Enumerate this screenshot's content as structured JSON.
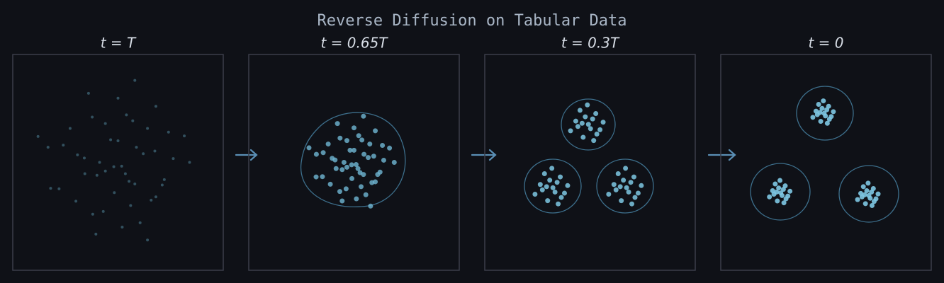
{
  "title": "Reverse Diffusion on Tabular Data",
  "chart_data": [
    {
      "type": "scatter",
      "title": "t = T",
      "color": "#3f6677",
      "alpha": 0.75,
      "xlim": [
        -4,
        4
      ],
      "ylim": [
        -4,
        4
      ],
      "x": [
        0.42,
        -1.54,
        1.12,
        -0.56,
        2.1,
        -0.28,
        0.14,
        -2.24,
        1.26,
        -0.98,
        0.7,
        -1.26,
        1.68,
        0,
        -0.7,
        0.84,
        -1.82,
        2.52,
        -0.14,
        0.56,
        -0.84,
        1.4,
        -2.66,
        0.28,
        -0.8,
        0.32,
        1.44,
        -2.08,
        0.16,
        0.96,
        -0.16,
        -1.12,
        -1.6,
        1.92,
        0.64,
        -0.48,
        -0.96,
        2.72,
        0,
        -2.56,
        1.44,
        1.12,
        -1.28,
        1.76,
        -3.04,
        0.48,
        0.64,
        -0.48
      ],
      "y": [
        -0.7,
        0.28,
        1.26,
        -1.82,
        0.14,
        0.84,
        -0.14,
        -0.98,
        -1.4,
        1.68,
        0.56,
        -0.42,
        -0.84,
        2.38,
        0,
        -2.24,
        1.26,
        0.98,
        -1.12,
        1.54,
        -2.66,
        0.42,
        0.56,
        -0.42,
        -0.48,
        1.76,
        -1.28,
        0.64,
        -2.4,
        0.32,
        -0.16,
        2.56,
        -1.44,
        1.12,
        -0.8,
        1.44,
        -1.92,
        0,
        0.8,
        -0.96,
        2.08,
        -2.88,
        0.16,
        -0.64,
        0.96,
        -1.6,
        3.04,
        -0.32
      ]
    },
    {
      "type": "scatter",
      "title": "t = 0.65T",
      "color": "#6fb6d3",
      "alpha": 0.8,
      "xlim": [
        -4,
        4
      ],
      "ylim": [
        -4,
        4
      ],
      "x": [
        0.23,
        -0.83,
        0.6,
        -0.3,
        1.13,
        -0.15,
        0.08,
        -1.2,
        0.68,
        -0.53,
        0.38,
        -0.68,
        0.9,
        0,
        -0.38,
        0.45,
        -0.98,
        1.35,
        -0.08,
        0.3,
        -0.45,
        0.75,
        -1.43,
        0.15,
        -0.45,
        0.18,
        0.81,
        -1.17,
        0.09,
        0.54,
        -0.09,
        -0.63,
        -0.9,
        1.08,
        0.36,
        -0.27,
        -0.54,
        1.53,
        0,
        -1.44,
        0.81,
        0.63,
        -0.72,
        0.99,
        -1.71,
        0.27,
        0.36,
        -0.27
      ],
      "y": [
        -0.38,
        0.15,
        0.68,
        -0.98,
        0.08,
        0.45,
        -0.08,
        -0.53,
        -0.75,
        0.9,
        0.3,
        -0.23,
        -0.45,
        1.28,
        0,
        -1.2,
        0.68,
        0.53,
        -0.6,
        0.83,
        -1.43,
        0.23,
        0.3,
        -0.23,
        -0.27,
        0.99,
        -0.72,
        0.36,
        -1.35,
        0.18,
        -0.09,
        1.44,
        -0.81,
        0.63,
        -0.45,
        0.81,
        -1.08,
        0,
        0.45,
        -0.54,
        1.17,
        -1.62,
        0.09,
        -0.36,
        0.54,
        -0.9,
        1.71,
        -0.18
      ]
    },
    {
      "type": "scatter",
      "title": "t = 0.3T",
      "color": "#7ec8e3",
      "alpha": 0.85,
      "xlim": [
        -4,
        4
      ],
      "ylim": [
        -4,
        4
      ],
      "x": [
        0.02,
        -0.54,
        0.22,
        -0.26,
        0.5,
        -0.18,
        -0.06,
        -0.74,
        0.26,
        -0.38,
        0.1,
        -0.46,
        0.38,
        -0.1,
        -0.3,
        0.14,
        -1.33,
        -1.89,
        -1.13,
        -1.61,
        -0.85,
        -1.53,
        -1.41,
        -2.09,
        -1.09,
        -1.73,
        -1.25,
        -1.81,
        -0.97,
        -1.45,
        -1.65,
        -1.21,
        1.47,
        0.91,
        1.67,
        1.19,
        1.95,
        1.27,
        1.39,
        0.71,
        1.71,
        1.07,
        1.55,
        0.99,
        1.83,
        1.35,
        1.15,
        1.59
      ],
      "y": [
        1.25,
        1.53,
        1.81,
        0.93,
        1.49,
        1.69,
        1.41,
        1.17,
        1.05,
        1.93,
        1.61,
        1.33,
        1.21,
        2.13,
        1.45,
        0.81,
        -1.1,
        -0.82,
        -0.54,
        -1.42,
        -0.86,
        -0.66,
        -0.94,
        -1.18,
        -1.3,
        -0.42,
        -0.74,
        -1.02,
        -1.14,
        -0.22,
        -0.9,
        -1.54,
        -1.1,
        -0.82,
        -0.54,
        -1.42,
        -0.86,
        -0.66,
        -0.94,
        -1.18,
        -1.3,
        -0.42,
        -0.74,
        -1.02,
        -1.14,
        -0.22,
        -0.9,
        -1.54
      ]
    },
    {
      "type": "scatter",
      "title": "t = 0",
      "color": "#7ec8e3",
      "alpha": 0.9,
      "xlim": [
        -4,
        4
      ],
      "ylim": [
        -4,
        4
      ],
      "x": [
        -0.02,
        -0.38,
        0.1,
        -0.2,
        0.28,
        -0.15,
        -0.07,
        -0.5,
        0.13,
        -0.28,
        0.03,
        -0.33,
        0.2,
        -0.1,
        -0.23,
        0.05,
        -1.67,
        -2.03,
        -1.55,
        -1.85,
        -1.37,
        -1.8,
        -1.72,
        -2.15,
        -1.52,
        -1.93,
        -1.62,
        -1.98,
        -1.45,
        -1.75,
        -1.88,
        -1.6,
        1.68,
        1.32,
        1.8,
        1.5,
        1.98,
        1.55,
        1.63,
        1.2,
        1.83,
        1.42,
        1.73,
        1.37,
        1.9,
        1.6,
        1.47,
        1.75
      ],
      "y": [
        1.72,
        1.9,
        2.08,
        1.52,
        1.88,
        2,
        1.82,
        1.67,
        1.6,
        2.15,
        1.95,
        1.77,
        1.7,
        2.28,
        1.85,
        1.45,
        -1.23,
        -1.05,
        -0.87,
        -1.43,
        -1.07,
        -0.95,
        -1.13,
        -1.28,
        -1.35,
        -0.8,
        -1,
        -1.18,
        -1.25,
        -0.67,
        -1.1,
        -1.5,
        -1.33,
        -1.15,
        -0.97,
        -1.53,
        -1.17,
        -1.05,
        -1.23,
        -1.38,
        -1.45,
        -0.9,
        -1.1,
        -1.28,
        -1.35,
        -0.77,
        -1.2,
        -1.6
      ]
    }
  ]
}
